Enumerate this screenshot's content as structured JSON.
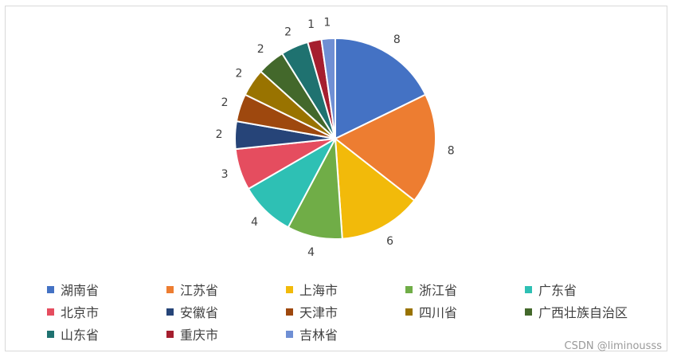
{
  "chart_data": {
    "type": "pie",
    "title": "",
    "categories": [
      "湖南省",
      "江苏省",
      "上海市",
      "浙江省",
      "广东省",
      "北京市",
      "安徽省",
      "天津市",
      "四川省",
      "广西壮族自治区",
      "山东省",
      "重庆市",
      "吉林省"
    ],
    "values": [
      8,
      8,
      6,
      4,
      4,
      3,
      2,
      2,
      2,
      2,
      2,
      1,
      1
    ],
    "colors": [
      "#4472C4",
      "#ED7D31",
      "#F2BA0A",
      "#70AD47",
      "#2EC0B4",
      "#E54D5F",
      "#264478",
      "#9E480E",
      "#997300",
      "#43682B",
      "#1F7270",
      "#A51E2E",
      "#6F8FD4"
    ],
    "data_labels": [
      "8",
      "8",
      "6",
      "4",
      "4",
      "3",
      "2",
      "2",
      "2",
      "2",
      "2",
      "1",
      "1"
    ],
    "legend_position": "bottom",
    "start_angle": "12 o'clock, clockwise"
  },
  "watermark": "CSDN @liminousss"
}
